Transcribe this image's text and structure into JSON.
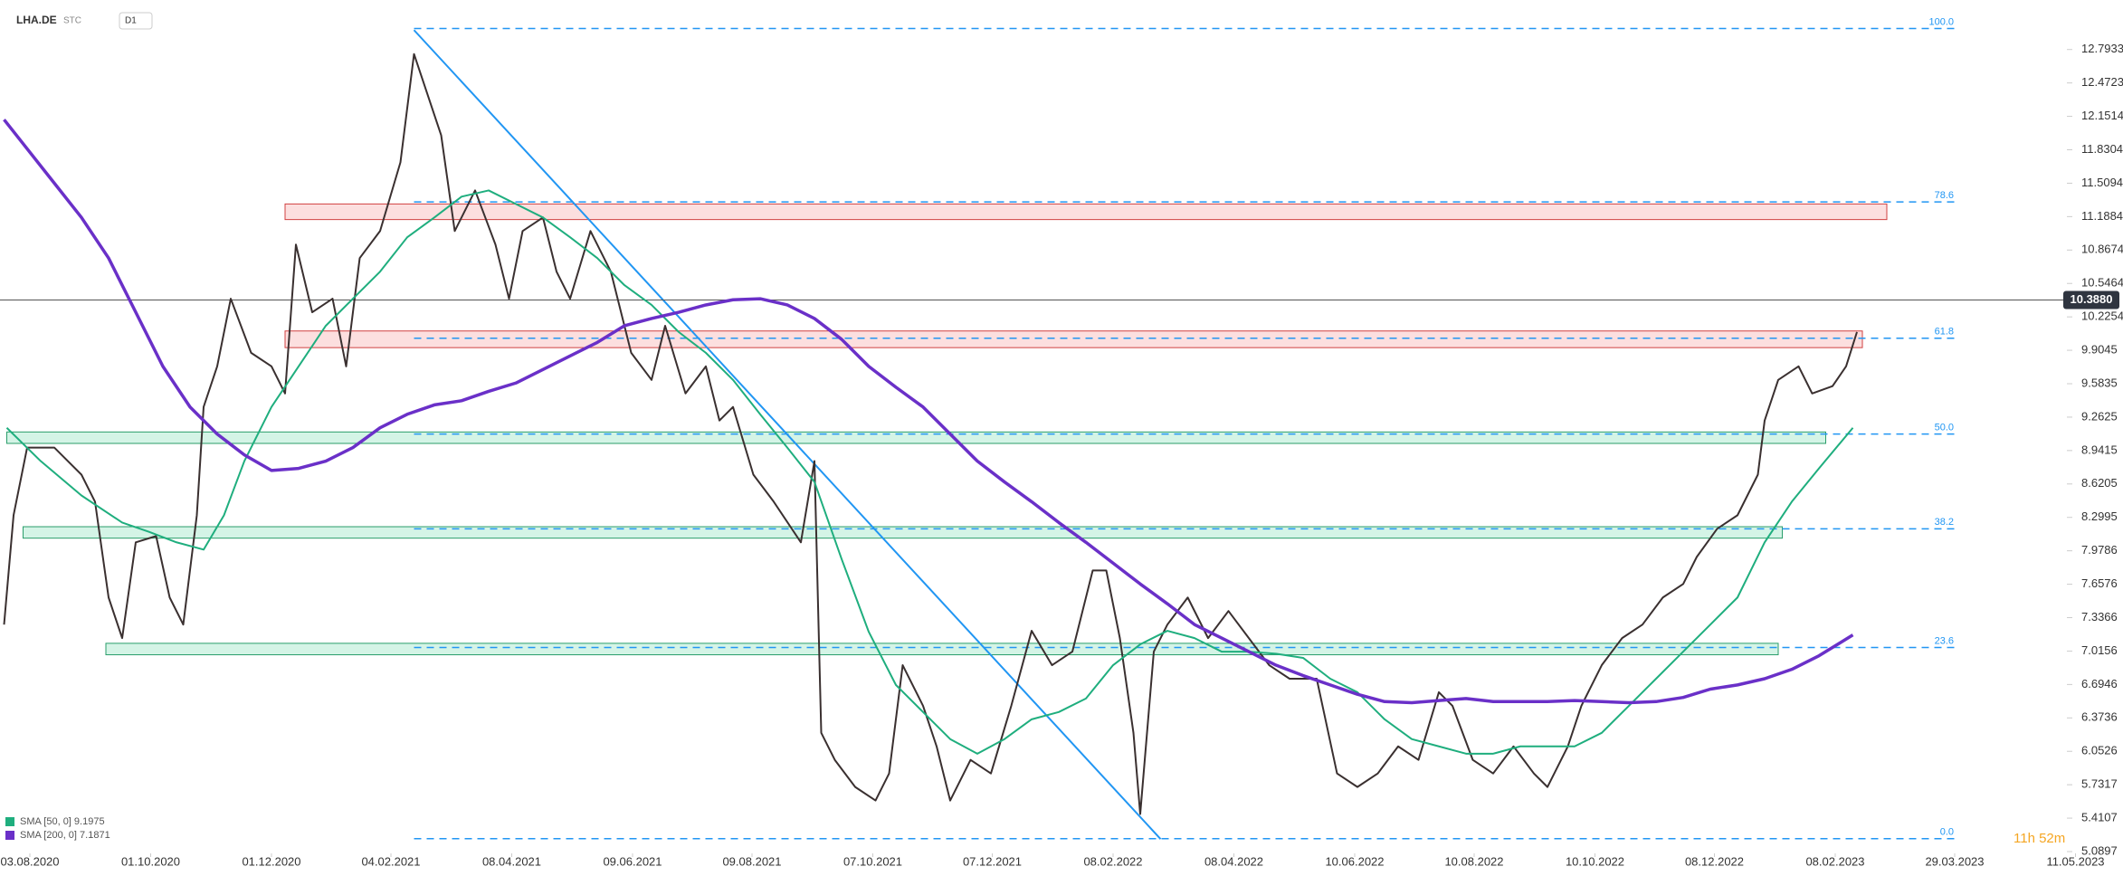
{
  "chart_data": {
    "type": "line",
    "symbol": "LHA.DE",
    "market": "STC",
    "interval": "D1",
    "timer": "11h 52m",
    "xlim": [
      0,
      1530
    ],
    "ylim": [
      5.0897,
      13.269
    ],
    "xticks": [
      {
        "value": 22,
        "label": "03.08.2020"
      },
      {
        "value": 111,
        "label": "01.10.2020"
      },
      {
        "value": 200,
        "label": "01.12.2020"
      },
      {
        "value": 288,
        "label": "04.02.2021"
      },
      {
        "value": 377,
        "label": "08.04.2021"
      },
      {
        "value": 466,
        "label": "09.06.2021"
      },
      {
        "value": 554,
        "label": "09.08.2021"
      },
      {
        "value": 643,
        "label": "07.10.2021"
      },
      {
        "value": 731,
        "label": "07.12.2021"
      },
      {
        "value": 820,
        "label": "08.02.2022"
      },
      {
        "value": 909,
        "label": "08.04.2022"
      },
      {
        "value": 998,
        "label": "10.06.2022"
      },
      {
        "value": 1086,
        "label": "10.08.2022"
      },
      {
        "value": 1175,
        "label": "10.10.2022"
      },
      {
        "value": 1263,
        "label": "08.12.2022"
      },
      {
        "value": 1352,
        "label": "08.02.2023"
      },
      {
        "value": 1440,
        "label": "29.03.2023"
      },
      {
        "value": 1529,
        "label": "11.05.2023"
      }
    ],
    "yticks": [
      12.7933,
      12.4723,
      12.1514,
      11.8304,
      11.5094,
      11.1884,
      10.8674,
      10.5464,
      10.2254,
      9.9045,
      9.5835,
      9.2625,
      8.9415,
      8.6205,
      8.2995,
      7.9786,
      7.6576,
      7.3366,
      7.0156,
      6.6946,
      6.3736,
      6.0526,
      5.7317,
      5.4107,
      5.0897
    ],
    "last_price": {
      "value": 10.388,
      "label": "10.3880"
    },
    "series": [
      {
        "color": "#3a3030",
        "x": [
          3,
          10,
          20,
          40,
          60,
          70,
          80,
          90,
          100,
          115,
          125,
          135,
          145,
          150,
          160,
          170,
          185,
          200,
          210,
          218,
          230,
          245,
          255,
          265,
          280,
          295,
          305,
          315,
          325,
          335,
          350,
          365,
          375,
          385,
          400,
          410,
          420,
          435,
          450,
          465,
          480,
          490,
          505,
          520,
          530,
          540,
          555,
          570,
          590,
          600,
          605,
          615,
          630,
          645,
          655,
          665,
          680,
          690,
          700,
          715,
          730,
          745,
          760,
          775,
          790,
          805,
          815,
          825,
          835,
          840,
          850,
          860,
          875,
          890,
          905,
          920,
          935,
          950,
          970,
          985,
          1000,
          1015,
          1030,
          1045,
          1060,
          1070,
          1085,
          1100,
          1115,
          1130,
          1140,
          1155,
          1165,
          1180,
          1195,
          1210,
          1225,
          1240,
          1250,
          1265,
          1280,
          1295,
          1300,
          1310,
          1325,
          1335,
          1350,
          1360,
          1368
        ],
        "values": [
          7.27,
          8.32,
          8.97,
          8.97,
          8.71,
          8.45,
          7.53,
          7.14,
          8.06,
          8.12,
          7.53,
          7.27,
          8.32,
          9.36,
          9.75,
          10.4,
          9.88,
          9.75,
          9.49,
          10.92,
          10.27,
          10.4,
          9.75,
          10.79,
          11.05,
          11.71,
          12.75,
          12.36,
          11.97,
          11.05,
          11.44,
          10.92,
          10.4,
          11.05,
          11.18,
          10.66,
          10.4,
          11.05,
          10.66,
          9.88,
          9.62,
          10.14,
          9.49,
          9.75,
          9.23,
          9.36,
          8.71,
          8.45,
          8.06,
          8.84,
          6.23,
          5.97,
          5.71,
          5.58,
          5.84,
          6.88,
          6.49,
          6.1,
          5.58,
          5.97,
          5.84,
          6.49,
          7.21,
          6.88,
          7.01,
          7.79,
          7.79,
          7.14,
          6.23,
          5.45,
          7.01,
          7.27,
          7.53,
          7.14,
          7.4,
          7.14,
          6.88,
          6.75,
          6.75,
          5.84,
          5.71,
          5.84,
          6.1,
          5.97,
          6.62,
          6.49,
          5.97,
          5.84,
          6.1,
          5.84,
          5.71,
          6.1,
          6.49,
          6.88,
          7.14,
          7.27,
          7.53,
          7.66,
          7.92,
          8.19,
          8.32,
          8.71,
          9.23,
          9.62,
          9.75,
          9.49,
          9.56,
          9.75,
          10.08
        ]
      },
      {
        "name": "SMA [50, 0] 9.1975",
        "color": "#1fae7e",
        "x": [
          5,
          30,
          60,
          90,
          110,
          130,
          150,
          165,
          180,
          200,
          220,
          240,
          260,
          280,
          300,
          320,
          340,
          360,
          380,
          400,
          420,
          440,
          460,
          480,
          500,
          520,
          540,
          560,
          580,
          600,
          620,
          640,
          660,
          680,
          700,
          720,
          740,
          760,
          780,
          800,
          820,
          840,
          860,
          880,
          900,
          920,
          940,
          960,
          980,
          1000,
          1020,
          1040,
          1060,
          1080,
          1100,
          1120,
          1140,
          1160,
          1180,
          1200,
          1220,
          1240,
          1260,
          1280,
          1300,
          1320,
          1340,
          1365
        ],
        "values": [
          9.16,
          8.84,
          8.51,
          8.25,
          8.16,
          8.06,
          7.99,
          8.32,
          8.84,
          9.36,
          9.75,
          10.14,
          10.4,
          10.66,
          10.99,
          11.18,
          11.38,
          11.44,
          11.31,
          11.18,
          10.99,
          10.79,
          10.53,
          10.34,
          10.08,
          9.88,
          9.62,
          9.29,
          8.97,
          8.64,
          7.9,
          7.2,
          6.69,
          6.43,
          6.17,
          6.03,
          6.17,
          6.36,
          6.43,
          6.56,
          6.88,
          7.08,
          7.21,
          7.14,
          7.01,
          7.01,
          6.99,
          6.95,
          6.75,
          6.62,
          6.36,
          6.17,
          6.1,
          6.03,
          6.03,
          6.1,
          6.1,
          6.1,
          6.23,
          6.49,
          6.75,
          7.01,
          7.27,
          7.53,
          8.06,
          8.45,
          8.77,
          9.16
        ]
      },
      {
        "name": "SMA [200, 0] 7.1871",
        "color": "#6a30c8",
        "x": [
          3,
          20,
          40,
          60,
          80,
          100,
          120,
          140,
          160,
          180,
          200,
          220,
          240,
          260,
          280,
          300,
          320,
          340,
          360,
          380,
          400,
          420,
          440,
          460,
          480,
          500,
          520,
          540,
          560,
          580,
          600,
          620,
          640,
          660,
          680,
          700,
          720,
          740,
          760,
          780,
          800,
          820,
          840,
          860,
          880,
          900,
          920,
          940,
          960,
          980,
          1000,
          1020,
          1040,
          1060,
          1080,
          1100,
          1120,
          1140,
          1160,
          1180,
          1200,
          1220,
          1240,
          1260,
          1280,
          1300,
          1320,
          1340,
          1365
        ],
        "values": [
          12.12,
          11.84,
          11.51,
          11.18,
          10.79,
          10.27,
          9.75,
          9.36,
          9.1,
          8.9,
          8.75,
          8.77,
          8.84,
          8.97,
          9.16,
          9.29,
          9.38,
          9.42,
          9.51,
          9.59,
          9.72,
          9.85,
          9.98,
          10.14,
          10.21,
          10.27,
          10.34,
          10.39,
          10.4,
          10.34,
          10.21,
          10.01,
          9.75,
          9.55,
          9.36,
          9.1,
          8.84,
          8.64,
          8.45,
          8.25,
          8.06,
          7.86,
          7.66,
          7.47,
          7.27,
          7.14,
          7.01,
          6.88,
          6.78,
          6.69,
          6.6,
          6.53,
          6.52,
          6.54,
          6.56,
          6.53,
          6.53,
          6.53,
          6.54,
          6.53,
          6.52,
          6.53,
          6.57,
          6.65,
          6.69,
          6.75,
          6.84,
          6.97,
          7.17
        ]
      }
    ],
    "fib_range": [
      305,
      1442
    ],
    "fib_levels": [
      {
        "label": "100.0",
        "price": 12.995
      },
      {
        "label": "78.6",
        "price": 11.33
      },
      {
        "label": "61.8",
        "price": 10.02
      },
      {
        "label": "50.0",
        "price": 9.1
      },
      {
        "label": "38.2",
        "price": 8.19
      },
      {
        "label": "23.6",
        "price": 7.05
      },
      {
        "label": "0.0",
        "price": 5.214
      }
    ],
    "trendline": {
      "x": [
        305,
        855
      ],
      "values": [
        12.98,
        5.21
      ]
    },
    "zones": [
      {
        "kind": "resistance",
        "x": [
          210,
          1390
        ],
        "range": [
          11.16,
          11.31
        ]
      },
      {
        "kind": "resistance",
        "x": [
          210,
          1372
        ],
        "range": [
          9.93,
          10.09
        ]
      },
      {
        "kind": "support",
        "x": [
          5,
          1345
        ],
        "range": [
          9.01,
          9.12
        ]
      },
      {
        "kind": "support",
        "x": [
          17,
          1313
        ],
        "range": [
          8.1,
          8.21
        ]
      },
      {
        "kind": "support",
        "x": [
          78,
          1310
        ],
        "range": [
          6.98,
          7.09
        ]
      }
    ]
  }
}
